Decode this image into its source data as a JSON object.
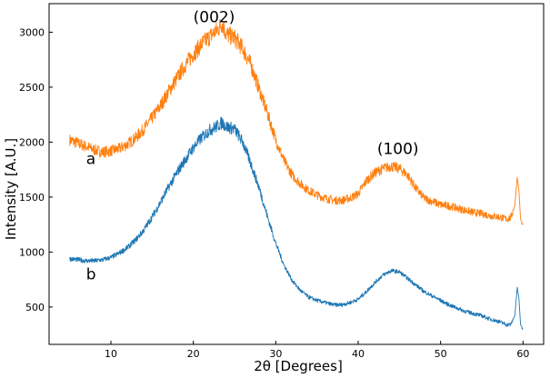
{
  "chart_data": {
    "type": "line",
    "xlabel": "2θ    [Degrees]",
    "ylabel": "Intensity    [A.U.]",
    "xlim": [
      2.5,
      62.5
    ],
    "ylim": [
      160,
      3260
    ],
    "xticks": [
      10,
      20,
      30,
      40,
      50,
      60
    ],
    "yticks": [
      500,
      1000,
      1500,
      2000,
      2500,
      3000
    ],
    "grid": false,
    "series": [
      {
        "name": "a",
        "color": "#ff7f0e",
        "x": [
          5,
          6,
          7,
          8,
          9,
          10,
          11,
          12,
          13,
          14,
          15,
          16,
          17,
          18,
          19,
          20,
          21,
          22,
          23,
          23.5,
          24,
          25,
          26,
          27,
          28,
          29,
          30,
          31,
          32,
          33,
          34,
          35,
          36,
          37,
          38,
          39,
          40,
          41,
          42,
          43,
          44,
          45,
          46,
          47,
          48,
          49,
          50,
          51,
          52,
          53,
          54,
          55,
          56,
          57,
          58,
          58.5,
          59,
          59.3,
          59.5,
          59.7,
          60
        ],
        "y": [
          2020,
          1990,
          1960,
          1930,
          1910,
          1920,
          1940,
          1980,
          2040,
          2120,
          2220,
          2330,
          2460,
          2580,
          2700,
          2800,
          2890,
          2960,
          3030,
          3080,
          2980,
          2950,
          2850,
          2700,
          2480,
          2260,
          2020,
          1830,
          1700,
          1620,
          1560,
          1520,
          1490,
          1470,
          1470,
          1490,
          1530,
          1650,
          1720,
          1760,
          1780,
          1760,
          1700,
          1580,
          1490,
          1460,
          1430,
          1420,
          1400,
          1380,
          1360,
          1350,
          1330,
          1320,
          1300,
          1310,
          1420,
          1680,
          1560,
          1300,
          1250
        ]
      },
      {
        "name": "b",
        "color": "#1f77b4",
        "x": [
          5,
          6,
          7,
          8,
          9,
          10,
          11,
          12,
          13,
          14,
          15,
          16,
          17,
          18,
          19,
          20,
          21,
          22,
          23,
          23.5,
          24,
          25,
          26,
          27,
          28,
          29,
          30,
          31,
          32,
          33,
          34,
          35,
          36,
          37,
          38,
          39,
          40,
          41,
          42,
          43,
          44,
          45,
          46,
          47,
          48,
          49,
          50,
          51,
          52,
          53,
          54,
          55,
          56,
          57,
          58,
          58.5,
          59,
          59.3,
          59.5,
          59.7,
          60
        ],
        "y": [
          940,
          930,
          920,
          920,
          930,
          950,
          990,
          1040,
          1110,
          1200,
          1320,
          1450,
          1590,
          1720,
          1840,
          1950,
          2040,
          2110,
          2150,
          2180,
          2140,
          2120,
          2000,
          1800,
          1580,
          1320,
          1080,
          880,
          740,
          650,
          590,
          560,
          540,
          520,
          520,
          540,
          570,
          640,
          720,
          790,
          830,
          820,
          760,
          700,
          640,
          600,
          560,
          520,
          490,
          460,
          440,
          420,
          390,
          370,
          340,
          340,
          420,
          680,
          580,
          340,
          300
        ]
      }
    ],
    "annotations": [
      {
        "text": "(002)",
        "x": 20.0,
        "y": 3090
      },
      {
        "text": "(100)",
        "x": 42.3,
        "y": 1890
      },
      {
        "text": "a",
        "x": 7.0,
        "y": 1800
      },
      {
        "text": "b",
        "x": 7.0,
        "y": 750
      }
    ]
  }
}
